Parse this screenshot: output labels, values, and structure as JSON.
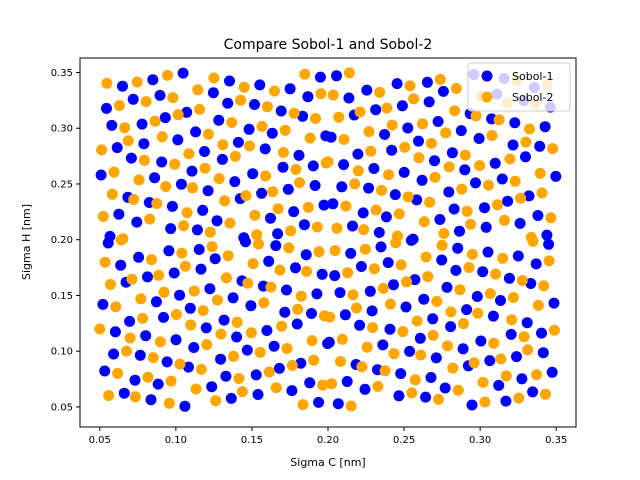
{
  "chart_data": {
    "type": "scatter",
    "title": "Compare Sobol-1 and Sobol-2",
    "xlabel": "Sigma C [nm]",
    "ylabel": "Sigma H [nm]",
    "xlim": [
      0.037,
      0.363
    ],
    "ylim": [
      0.032,
      0.363
    ],
    "xticks": [
      0.05,
      0.1,
      0.15,
      0.2,
      0.25,
      0.3,
      0.35
    ],
    "xtick_labels": [
      "0.05",
      "0.10",
      "0.15",
      "0.20",
      "0.25",
      "0.30",
      "0.35"
    ],
    "yticks": [
      0.05,
      0.1,
      0.15,
      0.2,
      0.25,
      0.3,
      0.35
    ],
    "ytick_labels": [
      "0.05",
      "0.10",
      "0.15",
      "0.20",
      "0.25",
      "0.30",
      "0.35"
    ],
    "grid": false,
    "legend_position": "top-right",
    "sampling": {
      "method": "sobol",
      "dimensions": 2,
      "points_per_series": 256,
      "range": [
        0.05,
        0.35
      ]
    },
    "series": [
      {
        "name": "Sobol-1",
        "color": "#0000ff",
        "scramble_seed": 1
      },
      {
        "name": "Sobol-2",
        "color": "#ffa500",
        "scramble_seed": 2
      }
    ]
  },
  "legend": {
    "items": [
      {
        "label": "Sobol-1",
        "color": "#0000ff"
      },
      {
        "label": "Sobol-2",
        "color": "#ffa500"
      }
    ]
  }
}
